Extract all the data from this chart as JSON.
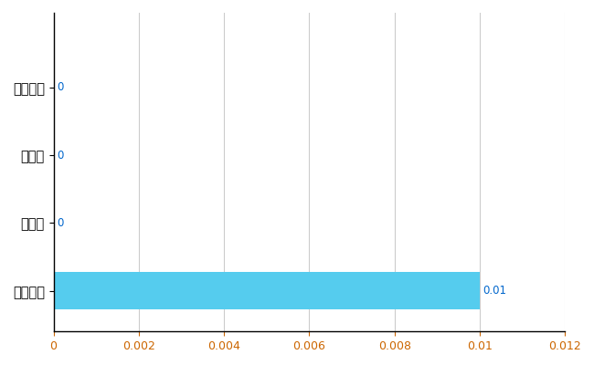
{
  "categories": [
    "全国平均",
    "県最大",
    "県平均",
    "十和田市"
  ],
  "values": [
    0.01,
    0.0,
    0.0,
    0.0
  ],
  "bar_color": "#55CCEE",
  "value_labels": [
    "0.01",
    "0",
    "0",
    "0"
  ],
  "xlim": [
    0,
    0.012
  ],
  "xticks": [
    0,
    0.002,
    0.004,
    0.006,
    0.008,
    0.01,
    0.012
  ],
  "grid_color": "#CCCCCC",
  "background_color": "#FFFFFF",
  "label_color": "#0066CC",
  "bar_height": 0.55,
  "figsize": [
    6.5,
    4.0
  ],
  "dpi": 100
}
